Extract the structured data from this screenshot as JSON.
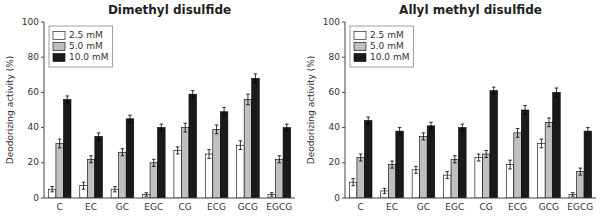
{
  "chart_data": [
    {
      "type": "bar",
      "title": "Dimethyl disulfide",
      "ylabel": "Deodorizing activity (%)",
      "categories": [
        "C",
        "EC",
        "GC",
        "EGC",
        "CG",
        "ECG",
        "GCG",
        "EGCG"
      ],
      "series": [
        {
          "name": "2.5 mM",
          "color": "white",
          "values": [
            5,
            7,
            5,
            2,
            27,
            25,
            30,
            2
          ],
          "errors": [
            1.5,
            2.0,
            1.5,
            1.0,
            2.0,
            2.5,
            2.5,
            1.0
          ]
        },
        {
          "name": "5.0 mM",
          "color": "#c0c0c0",
          "values": [
            31,
            22,
            26,
            20,
            40,
            39,
            56,
            22
          ],
          "errors": [
            2.5,
            2.0,
            2.0,
            2.0,
            2.5,
            2.5,
            3.0,
            2.0
          ]
        },
        {
          "name": "10.0 mM",
          "color": "#1a1a1a",
          "values": [
            56,
            35,
            45,
            40,
            59,
            49,
            68,
            40
          ],
          "errors": [
            2.0,
            2.0,
            2.0,
            2.0,
            2.0,
            2.5,
            2.5,
            2.0
          ]
        }
      ],
      "ylim": [
        0,
        100
      ],
      "yticks": [
        0,
        20,
        40,
        60,
        80,
        100
      ],
      "grid": false,
      "legend": "upper left"
    },
    {
      "type": "bar",
      "title": "Allyl methyl disulfide",
      "ylabel": "Deodorizing activity (%)",
      "categories": [
        "C",
        "EC",
        "GC",
        "EGC",
        "CG",
        "ECG",
        "GCG",
        "EGCG"
      ],
      "series": [
        {
          "name": "2.5 mM",
          "color": "white",
          "values": [
            9,
            4,
            16,
            13,
            23,
            19,
            31,
            2
          ],
          "errors": [
            2.0,
            1.5,
            2.0,
            2.0,
            2.0,
            2.5,
            2.5,
            1.0
          ]
        },
        {
          "name": "5.0 mM",
          "color": "#c0c0c0",
          "values": [
            23,
            19,
            35,
            22,
            25,
            37,
            43,
            15
          ],
          "errors": [
            2.0,
            2.0,
            2.0,
            2.0,
            2.0,
            2.5,
            2.5,
            2.0
          ]
        },
        {
          "name": "10.0 mM",
          "color": "#1a1a1a",
          "values": [
            44,
            38,
            41,
            40,
            61,
            50,
            60,
            38
          ],
          "errors": [
            2.0,
            2.0,
            2.0,
            2.0,
            2.0,
            2.5,
            2.5,
            2.0
          ]
        }
      ],
      "ylim": [
        0,
        100
      ],
      "yticks": [
        0,
        20,
        40,
        60,
        80,
        100
      ],
      "grid": false,
      "legend": "upper left"
    }
  ]
}
